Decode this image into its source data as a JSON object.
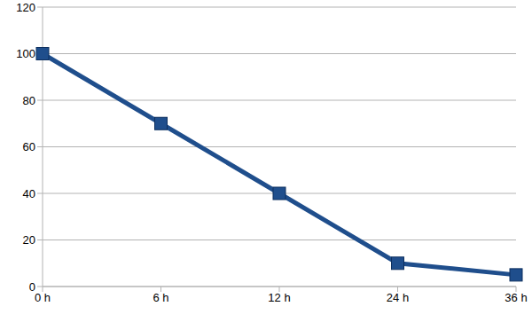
{
  "chart_data": {
    "type": "line",
    "categories": [
      "0 h",
      "6 h",
      "12 h",
      "24 h",
      "36 h"
    ],
    "values": [
      100,
      70,
      40,
      10,
      5
    ],
    "color": "#1f4e8c",
    "marker": "square",
    "ylim": [
      0,
      120
    ],
    "yticks": [
      0,
      20,
      40,
      60,
      80,
      100,
      120
    ],
    "grid": true
  }
}
